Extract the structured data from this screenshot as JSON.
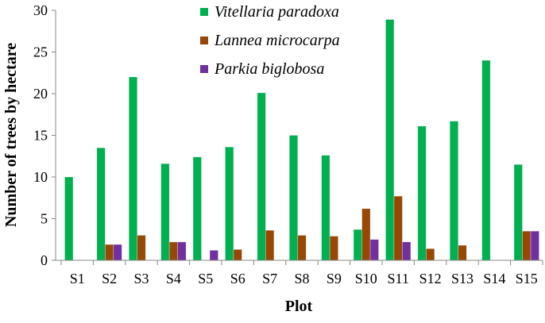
{
  "chart_data": {
    "type": "bar",
    "title": "",
    "xlabel": "Plot",
    "ylabel": "Number of trees by hectare",
    "ylim": [
      0,
      30
    ],
    "yticks": [
      0,
      5,
      10,
      15,
      20,
      25,
      30
    ],
    "grid": false,
    "legend_position": "top-center",
    "categories": [
      "S1",
      "S2",
      "S3",
      "S4",
      "S5",
      "S6",
      "S7",
      "S8",
      "S9",
      "S10",
      "S11",
      "S12",
      "S13",
      "S14",
      "S15"
    ],
    "series": [
      {
        "name": "Vitellaria paradoxa",
        "color": "#00B050",
        "values": [
          10.0,
          13.5,
          22.0,
          11.6,
          12.4,
          13.6,
          20.1,
          15.0,
          12.6,
          3.7,
          28.9,
          16.1,
          16.7,
          24.0,
          11.5
        ]
      },
      {
        "name": "Lannea microcarpa",
        "color": "#974706",
        "values": [
          0,
          1.9,
          3.0,
          2.2,
          0,
          1.3,
          3.6,
          3.0,
          2.9,
          6.2,
          7.7,
          1.4,
          1.8,
          0,
          3.5
        ]
      },
      {
        "name": "Parkia biglobosa",
        "color": "#7030A0",
        "values": [
          0,
          1.9,
          0,
          2.2,
          1.2,
          0,
          0,
          0,
          0,
          2.5,
          2.2,
          0,
          0,
          0,
          3.5
        ]
      }
    ]
  }
}
